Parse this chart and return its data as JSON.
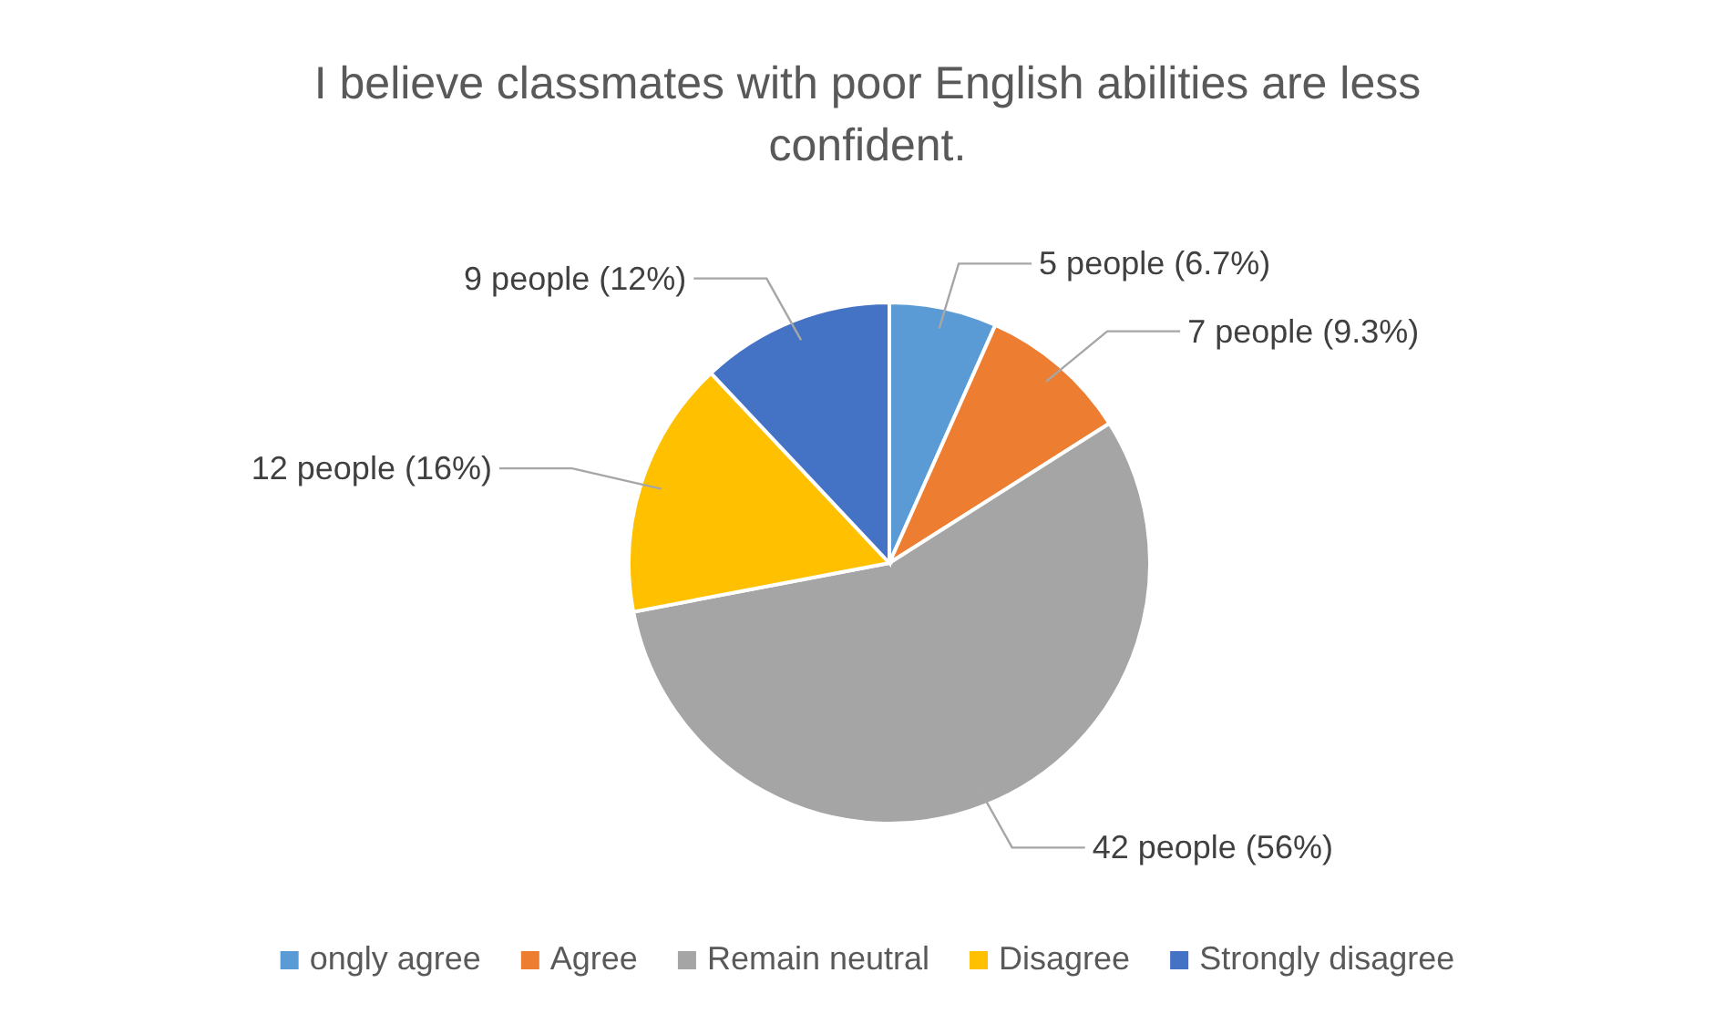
{
  "chart_data": {
    "type": "pie",
    "title": "I believe classmates with poor English abilities are less confident.",
    "categories": [
      "ongly agree",
      "Agree",
      "Remain neutral",
      "Disagree",
      "Strongly disagree"
    ],
    "values": [
      5,
      7,
      42,
      12,
      9
    ],
    "colors": [
      "#5b9bd5",
      "#ed7d31",
      "#a5a5a5",
      "#ffc000",
      "#4472c4"
    ],
    "value_labels": [
      "5 people (6.7%)",
      "7 people (9.3%)",
      "42 people (56%)",
      "12 people (16%)",
      "9 people (12%)"
    ],
    "legend": "bottom"
  }
}
